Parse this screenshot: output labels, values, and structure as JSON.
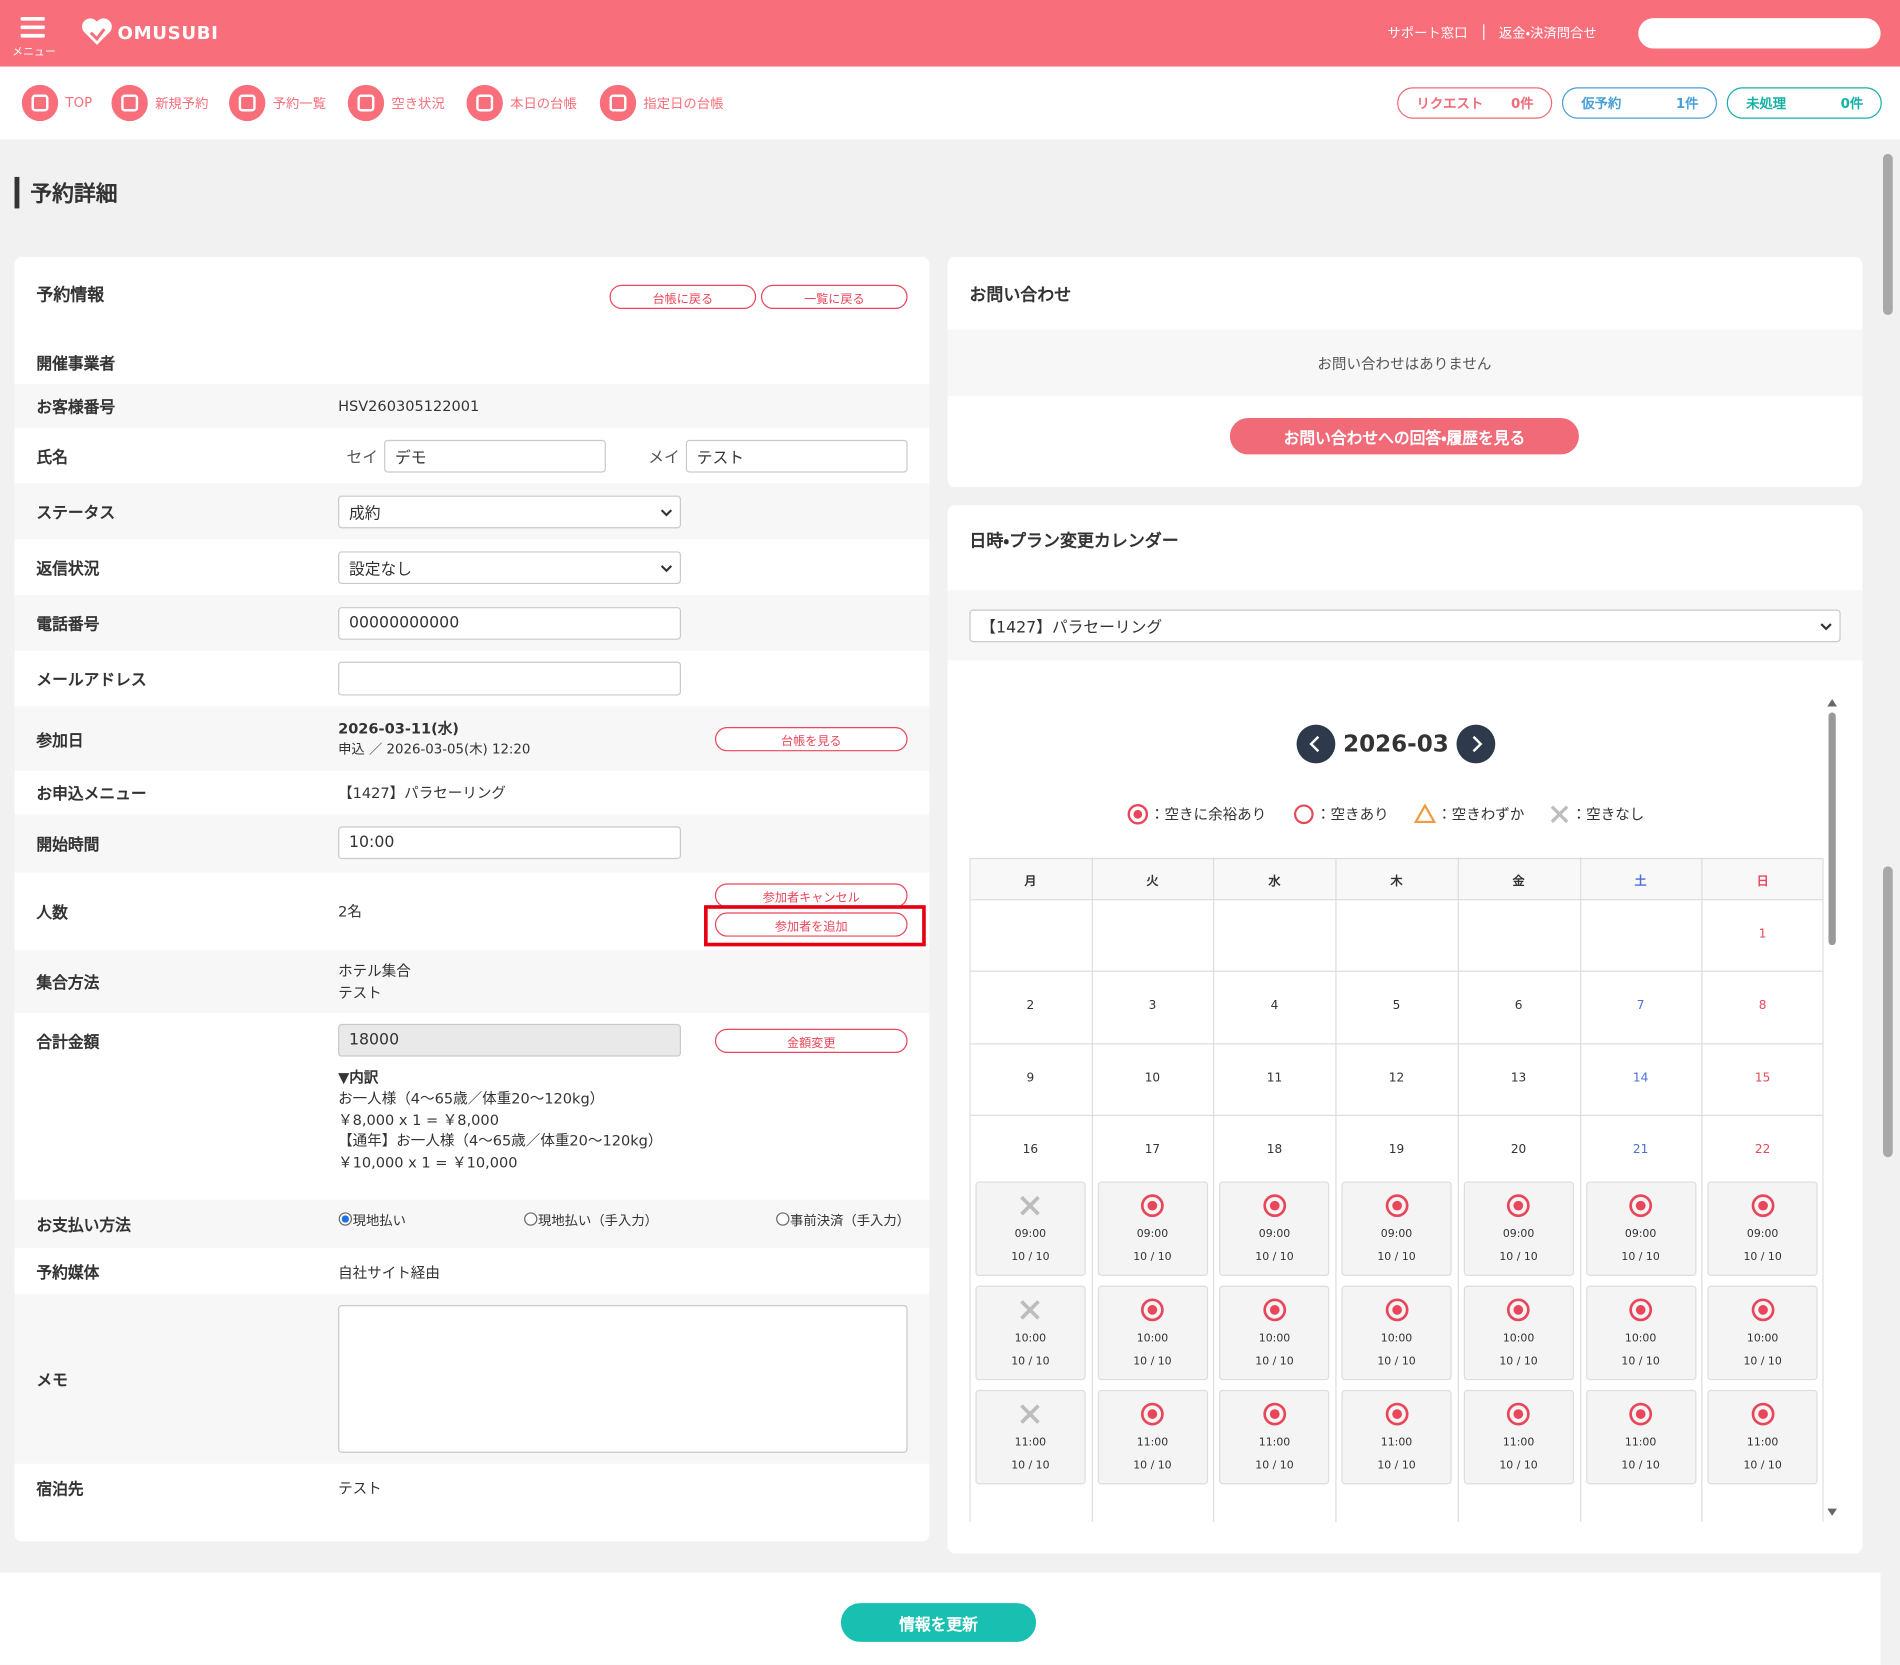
{
  "header": {
    "menu_label": "メニュー",
    "logo": "OMUSUBI",
    "links": [
      "サポート窓口",
      "返金・決済問合せ"
    ]
  },
  "nav": {
    "items": [
      "TOP",
      "新規予約",
      "予約一覧",
      "空き状況",
      "本日の台帳",
      "指定日の台帳"
    ],
    "badges": [
      {
        "label": "リクエスト",
        "count": "0件",
        "color": "#f06b78"
      },
      {
        "label": "仮予約",
        "count": "1件",
        "color": "#4a9fd8"
      },
      {
        "label": "未処理",
        "count": "0件",
        "color": "#16b0a5"
      }
    ]
  },
  "page_title": "予約詳細",
  "reservation": {
    "title": "予約情報",
    "buttons": [
      "台帳に戻る",
      "一覧に戻る"
    ],
    "organizer": {
      "label": "開催事業者"
    },
    "customer_no": {
      "label": "お客様番号",
      "value": "HSV260305122001"
    },
    "name": {
      "label": "氏名",
      "sei_label": "セイ",
      "sei": "デモ",
      "mei_label": "メイ",
      "mei": "テスト"
    },
    "status": {
      "label": "ステータス",
      "value": "成約"
    },
    "reply": {
      "label": "返信状況",
      "value": "設定なし"
    },
    "phone": {
      "label": "電話番号",
      "value": "00000000000"
    },
    "email": {
      "label": "メールアドレス"
    },
    "date": {
      "label": "参加日",
      "value": "2026-03-11(水)",
      "applied": "申込 ／ 2026-03-05(木) 12:20",
      "button": "台帳を見る"
    },
    "menu": {
      "label": "お申込メニュー",
      "value": "【1427】パラセーリング"
    },
    "start": {
      "label": "開始時間",
      "value": "10:00"
    },
    "people": {
      "label": "人数",
      "value": "2名",
      "buttons": [
        "参加者キャンセル",
        "参加者を追加"
      ]
    },
    "meeting": {
      "label": "集合方法",
      "lines": [
        "ホテル集合",
        "テスト"
      ]
    },
    "total": {
      "label": "合計金額",
      "value": "18000",
      "button": "金額変更",
      "breakdown": [
        "▼内訳",
        "お一人様（4〜65歳／体重20〜120kg）",
        "￥8,000 x 1 = ￥8,000",
        "【通年】お一人様（4〜65歳／体重20〜120kg）",
        "￥10,000 x 1 = ￥10,000"
      ]
    },
    "payment": {
      "label": "お支払い方法",
      "options": [
        "現地払い",
        "現地払い（手入力）",
        "事前決済（手入力）"
      ]
    },
    "channel": {
      "label": "予約媒体",
      "value": "自社サイト経由"
    },
    "memo": {
      "label": "メモ"
    },
    "lodging": {
      "label": "宿泊先",
      "value": "テスト"
    }
  },
  "inquiry": {
    "title": "お問い合わせ",
    "empty": "お問い合わせはありません",
    "button": "お問い合わせへの回答・履歴を見る"
  },
  "calendar": {
    "title": "日時・プラン変更カレンダー",
    "plan": "【1427】パラセーリング",
    "month": "2026-03",
    "legend": [
      "：空きに余裕あり",
      "：空きあり",
      "：空きわずか",
      "：空きなし"
    ],
    "weekdays": [
      "月",
      "火",
      "水",
      "木",
      "金",
      "土",
      "日"
    ],
    "weeks": [
      [
        null,
        null,
        null,
        null,
        null,
        null,
        1
      ],
      [
        2,
        3,
        4,
        5,
        6,
        7,
        8
      ],
      [
        9,
        10,
        11,
        12,
        13,
        14,
        15
      ],
      [
        16,
        17,
        18,
        19,
        20,
        21,
        22
      ]
    ],
    "slots": [
      {
        "time": "09:00",
        "stock": "10 / 10",
        "icons": [
          "cross",
          "target",
          "target",
          "target",
          "target",
          "target",
          "target"
        ]
      },
      {
        "time": "10:00",
        "stock": "10 / 10",
        "icons": [
          "cross",
          "target",
          "target",
          "target",
          "target",
          "target",
          "target"
        ]
      },
      {
        "time": "11:00",
        "stock": "10 / 10",
        "icons": [
          "cross",
          "target",
          "target",
          "target",
          "target",
          "target",
          "target"
        ]
      }
    ]
  },
  "footer": {
    "button": "情報を更新"
  }
}
